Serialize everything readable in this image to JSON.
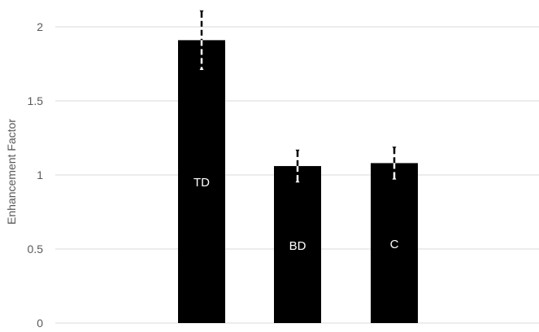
{
  "chart_data": {
    "type": "bar",
    "title": "",
    "xlabel": "",
    "ylabel": "Enhancement Factor",
    "ylim": [
      0,
      2
    ],
    "yticks": [
      "0",
      "0.5",
      "1",
      "1.5",
      "2"
    ],
    "ytick_values": [
      0,
      0.5,
      1,
      1.5,
      2
    ],
    "grid": true,
    "legend": "none",
    "categories": [
      "TD",
      "BD",
      "C"
    ],
    "values": [
      1.91,
      1.06,
      1.08
    ],
    "error": [
      0.19,
      0.1,
      0.1
    ],
    "bar_labels": [
      "TD",
      "BD",
      "C"
    ],
    "colors": {
      "bar": "#000000",
      "grid": "#d9d9d9",
      "axis_text": "#595959",
      "bar_label": "#ffffff"
    }
  }
}
